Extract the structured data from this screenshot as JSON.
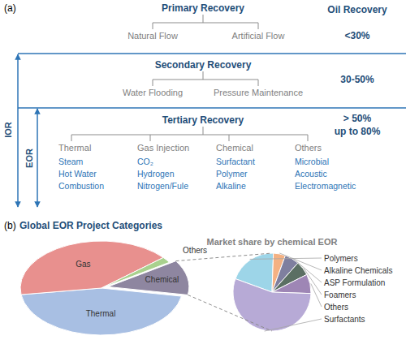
{
  "diagram": {
    "panel_a": {
      "label": "(a)",
      "recovery_header": "Oil Recovery",
      "ior_label": "IOR",
      "eor_label": "EOR",
      "stages": [
        {
          "title": "Primary Recovery",
          "branches": [
            {
              "label": "Natural Flow"
            },
            {
              "label": "Artificial Flow"
            }
          ],
          "recovery": [
            "<30%"
          ]
        },
        {
          "title": "Secondary Recovery",
          "branches": [
            {
              "label": "Water Flooding"
            },
            {
              "label": "Pressure Maintenance"
            }
          ],
          "recovery": [
            "30-50%"
          ]
        },
        {
          "title": "Tertiary Recovery",
          "branches": [
            {
              "label": "Thermal",
              "items": [
                "Steam",
                "Hot Water",
                "Combustion"
              ]
            },
            {
              "label": "Gas Injection",
              "items": [
                "CO₂",
                "Hydrogen",
                "Nitrogen/Fule"
              ]
            },
            {
              "label": "Chemical",
              "items": [
                "Surfactant",
                "Polymer",
                "Alkaline"
              ]
            },
            {
              "label": "Others",
              "items": [
                "Microbial",
                "Acoustic",
                "Electromagnetic"
              ]
            }
          ],
          "recovery": [
            "> 50%",
            "up to 80%"
          ]
        }
      ]
    },
    "panel_b": {
      "label": "(b)"
    }
  },
  "chart_data": [
    {
      "type": "pie",
      "title": "Global EOR Project Categories",
      "categories": [
        "Thermal",
        "Gas",
        "Others",
        "Chemical"
      ],
      "values": [
        45,
        41,
        2,
        12
      ],
      "colors": [
        "#a8bfe3",
        "#e8908e",
        "#a9d18e",
        "#8e86a0"
      ]
    },
    {
      "type": "pie",
      "title": "Market share by chemical EOR",
      "categories": [
        "Polymers",
        "Alkaline Chemicals",
        "ASP Formulation",
        "Foamers",
        "Others",
        "Surfactants"
      ],
      "values": [
        20,
        5,
        6,
        6,
        8,
        55
      ],
      "colors": [
        "#9dd5e8",
        "#f4b183",
        "#7f7f9f",
        "#5b6f63",
        "#9e86b5",
        "#b7aad6"
      ]
    }
  ]
}
